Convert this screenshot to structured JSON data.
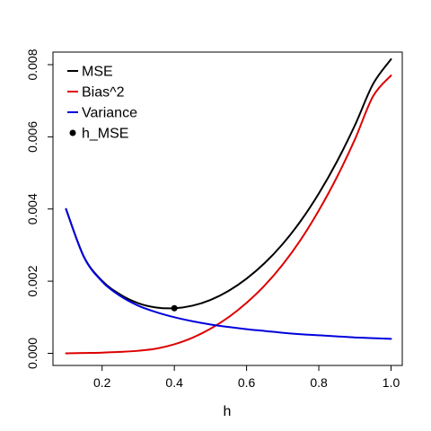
{
  "chart_data": {
    "type": "line",
    "title": "",
    "xlabel": "h",
    "ylabel": "",
    "xlim": [
      0.1,
      1.0
    ],
    "ylim": [
      0.0,
      0.008
    ],
    "xticks": [
      0.2,
      0.4,
      0.6,
      0.8,
      1.0
    ],
    "xtick_labels": [
      "0.2",
      "0.4",
      "0.6",
      "0.8",
      "1.0"
    ],
    "yticks": [
      0.0,
      0.002,
      0.004,
      0.006,
      0.008
    ],
    "ytick_labels": [
      "0.000",
      "0.002",
      "0.004",
      "0.006",
      "0.008"
    ],
    "grid": false,
    "legend_position": "top-left",
    "x": [
      0.1,
      0.15,
      0.2,
      0.25,
      0.3,
      0.35,
      0.4,
      0.45,
      0.5,
      0.55,
      0.6,
      0.65,
      0.7,
      0.75,
      0.8,
      0.85,
      0.9,
      0.95,
      1.0
    ],
    "series": [
      {
        "name": "MSE",
        "color": "#000000",
        "values": [
          0.004,
          0.00267,
          0.00201,
          0.00163,
          0.00139,
          0.00127,
          0.00125,
          0.00132,
          0.00148,
          0.00173,
          0.00207,
          0.0025,
          0.00303,
          0.00367,
          0.00443,
          0.00531,
          0.00632,
          0.00746,
          0.00815
        ]
      },
      {
        "name": "Bias^2",
        "color": "#dd0000",
        "values": [
          0.0,
          1e-05,
          2e-05,
          4e-05,
          7e-05,
          0.00013,
          0.00025,
          0.00043,
          0.00068,
          0.001,
          0.0014,
          0.00188,
          0.00246,
          0.00315,
          0.00396,
          0.00488,
          0.00593,
          0.00712,
          0.0077
        ]
      },
      {
        "name": "Variance",
        "color": "#0000dd",
        "values": [
          0.004,
          0.00266,
          0.00199,
          0.00159,
          0.00132,
          0.00114,
          0.001,
          0.00089,
          0.0008,
          0.00073,
          0.00067,
          0.00062,
          0.00057,
          0.00053,
          0.0005,
          0.00047,
          0.00044,
          0.00042,
          0.0004
        ]
      }
    ],
    "points": [
      {
        "name": "h_MSE",
        "x": 0.4,
        "y": 0.00125,
        "color": "#000000"
      }
    ],
    "legend": [
      {
        "label": "MSE",
        "color": "#000000",
        "kind": "line"
      },
      {
        "label": "Bias^2",
        "color": "#dd0000",
        "kind": "line"
      },
      {
        "label": "Variance",
        "color": "#0000dd",
        "kind": "line"
      },
      {
        "label": "h_MSE",
        "color": "#000000",
        "kind": "point"
      }
    ]
  }
}
